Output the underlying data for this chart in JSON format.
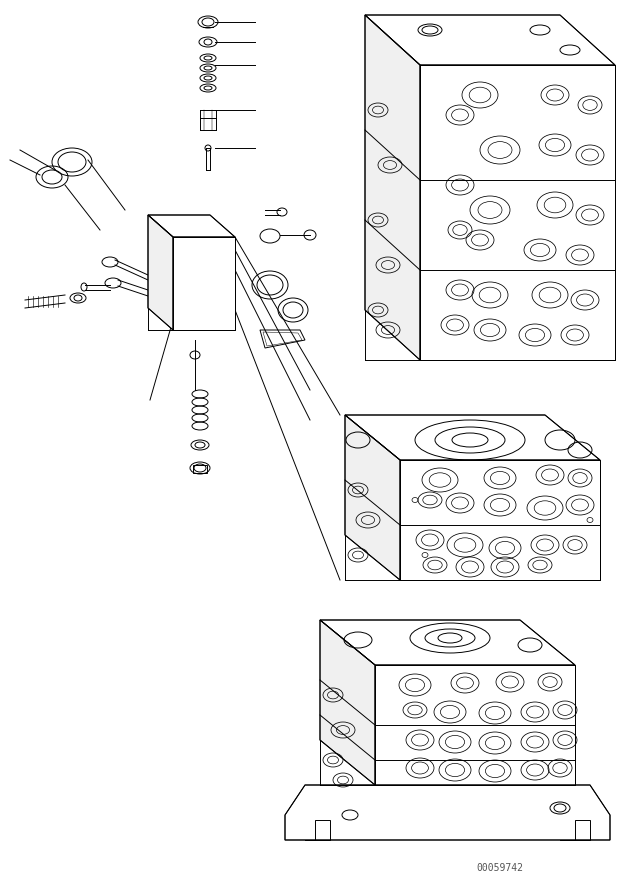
{
  "background_color": "#ffffff",
  "line_color": "#000000",
  "line_width": 0.7,
  "fig_width": 6.26,
  "fig_height": 8.83,
  "dpi": 100,
  "serial_number": "00059742"
}
